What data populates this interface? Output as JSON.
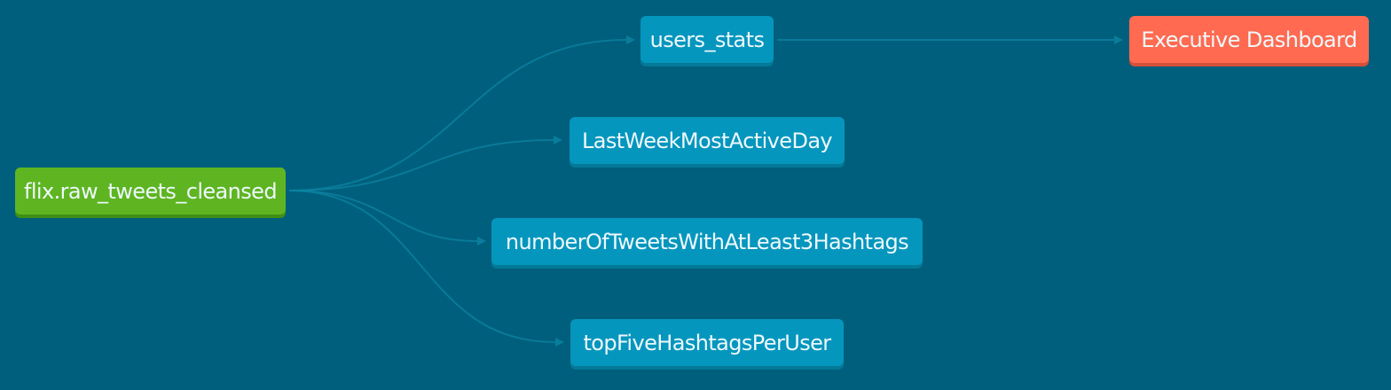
{
  "nodes": {
    "source": {
      "label": "flix.raw_tweets_cleansed",
      "kind": "source"
    },
    "users": {
      "label": "users_stats",
      "kind": "model"
    },
    "lastweek": {
      "label": "LastWeekMostActiveDay",
      "kind": "model"
    },
    "hashtags": {
      "label": "numberOfTweetsWithAtLeast3Hashtags",
      "kind": "model"
    },
    "topfive": {
      "label": "topFiveHashtagsPerUser",
      "kind": "model"
    },
    "exec": {
      "label": "Executive Dashboard",
      "kind": "exposure"
    }
  },
  "edges": [
    {
      "from": "source",
      "to": "users"
    },
    {
      "from": "source",
      "to": "lastweek"
    },
    {
      "from": "source",
      "to": "hashtags"
    },
    {
      "from": "source",
      "to": "topfive"
    },
    {
      "from": "users",
      "to": "exec"
    }
  ],
  "colors": {
    "background": "#005f7c",
    "edge": "#0c83a3",
    "source": "#5eb521",
    "model": "#0596be",
    "exposure": "#ff6a50"
  }
}
